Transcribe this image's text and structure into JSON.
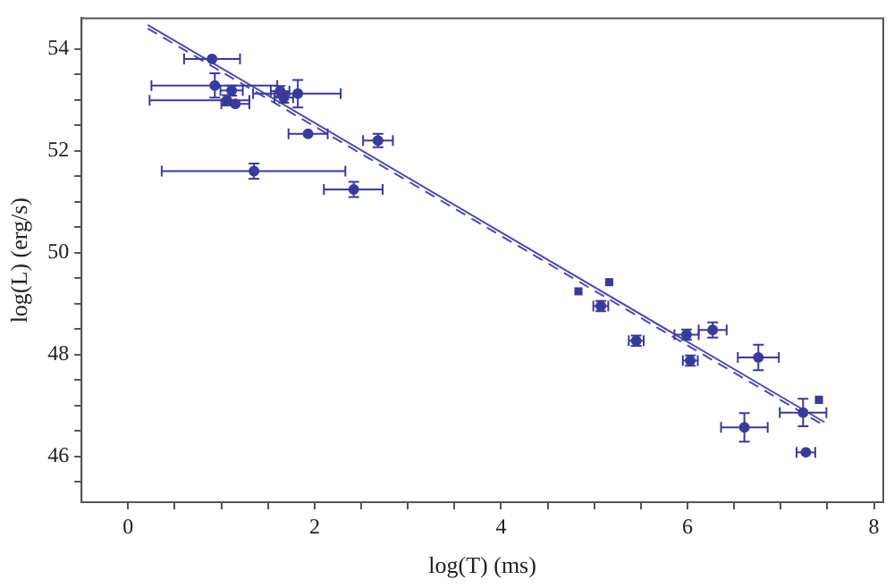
{
  "chart_data": {
    "type": "scatter",
    "xlabel": "log(T) (ms)",
    "ylabel": "log(L) (erg/s)",
    "xlim": [
      -0.5,
      8.1
    ],
    "ylim": [
      45.1,
      54.6
    ],
    "xticks": [
      0,
      {
        "value": 0.5,
        "label": null
      },
      {
        "value": 1,
        "label": null
      },
      {
        "value": 1.5,
        "label": null
      },
      2,
      {
        "value": 2.5,
        "label": null
      },
      {
        "value": 3,
        "label": null
      },
      {
        "value": 3.5,
        "label": null
      },
      4,
      {
        "value": 4.5,
        "label": null
      },
      {
        "value": 5,
        "label": null
      },
      {
        "value": 5.5,
        "label": null
      },
      6,
      {
        "value": 6.5,
        "label": null
      },
      {
        "value": 7,
        "label": null
      },
      {
        "value": 7.5,
        "label": null
      },
      8
    ],
    "yticks": [
      {
        "value": 45.5,
        "label": null
      },
      46,
      {
        "value": 46.5,
        "label": null
      },
      {
        "value": 47,
        "label": null
      },
      {
        "value": 47.5,
        "label": null
      },
      48,
      {
        "value": 48.5,
        "label": null
      },
      {
        "value": 49,
        "label": null
      },
      {
        "value": 49.5,
        "label": null
      },
      50,
      {
        "value": 50.5,
        "label": null
      },
      {
        "value": 51,
        "label": null
      },
      {
        "value": 51.5,
        "label": null
      },
      52,
      {
        "value": 52.5,
        "label": null
      },
      {
        "value": 53,
        "label": null
      },
      {
        "value": 53.5,
        "label": null
      },
      54
    ],
    "grid": false,
    "legend": false,
    "series": [
      {
        "marker": "circle",
        "color": "#3a3a9a",
        "x": [
          0.9,
          0.93,
          1.11,
          1.06,
          1.15,
          1.63,
          1.67,
          1.82,
          1.93,
          2.68,
          1.35,
          2.42,
          5.07,
          5.45,
          5.99,
          6.27,
          6.03,
          6.76,
          7.24,
          6.61,
          7.27
        ],
        "values": [
          53.8,
          53.28,
          53.18,
          52.99,
          52.92,
          53.17,
          53.04,
          53.12,
          52.33,
          52.2,
          51.6,
          51.24,
          48.95,
          48.27,
          48.39,
          48.48,
          47.88,
          47.94,
          46.86,
          46.57,
          46.08
        ],
        "errors": [
          null,
          0.24,
          0.1,
          0.1,
          null,
          0.1,
          0.1,
          0.27,
          null,
          0.13,
          0.15,
          0.15,
          0.1,
          0.1,
          0.1,
          0.15,
          0.1,
          0.25,
          0.27,
          0.28,
          null
        ],
        "xerrors": [
          0.3,
          [
            0.25,
            1.6
          ],
          0.12,
          [
            0.23,
            1.3
          ],
          0.15,
          0.1,
          0.1,
          [
            1.34,
            2.28
          ],
          0.21,
          0.16,
          [
            0.36,
            2.33
          ],
          [
            2.1,
            2.73
          ],
          0.08,
          0.08,
          0.13,
          0.15,
          0.08,
          0.22,
          0.25,
          0.25,
          0.1
        ]
      },
      {
        "marker": "square",
        "color": "#3a3a9a",
        "x": [
          4.83,
          5.16,
          7.41
        ],
        "values": [
          49.24,
          49.42,
          47.11
        ]
      },
      {
        "type": "line",
        "line_style": "solid",
        "color": "#4b4bab",
        "x": [
          0.21,
          7.47
        ],
        "values": [
          54.47,
          46.67
        ]
      },
      {
        "type": "line",
        "line_style": "dashed",
        "color": "#4b4bab",
        "x": [
          0.21,
          7.47
        ],
        "values": [
          54.4,
          46.6
        ]
      }
    ]
  }
}
